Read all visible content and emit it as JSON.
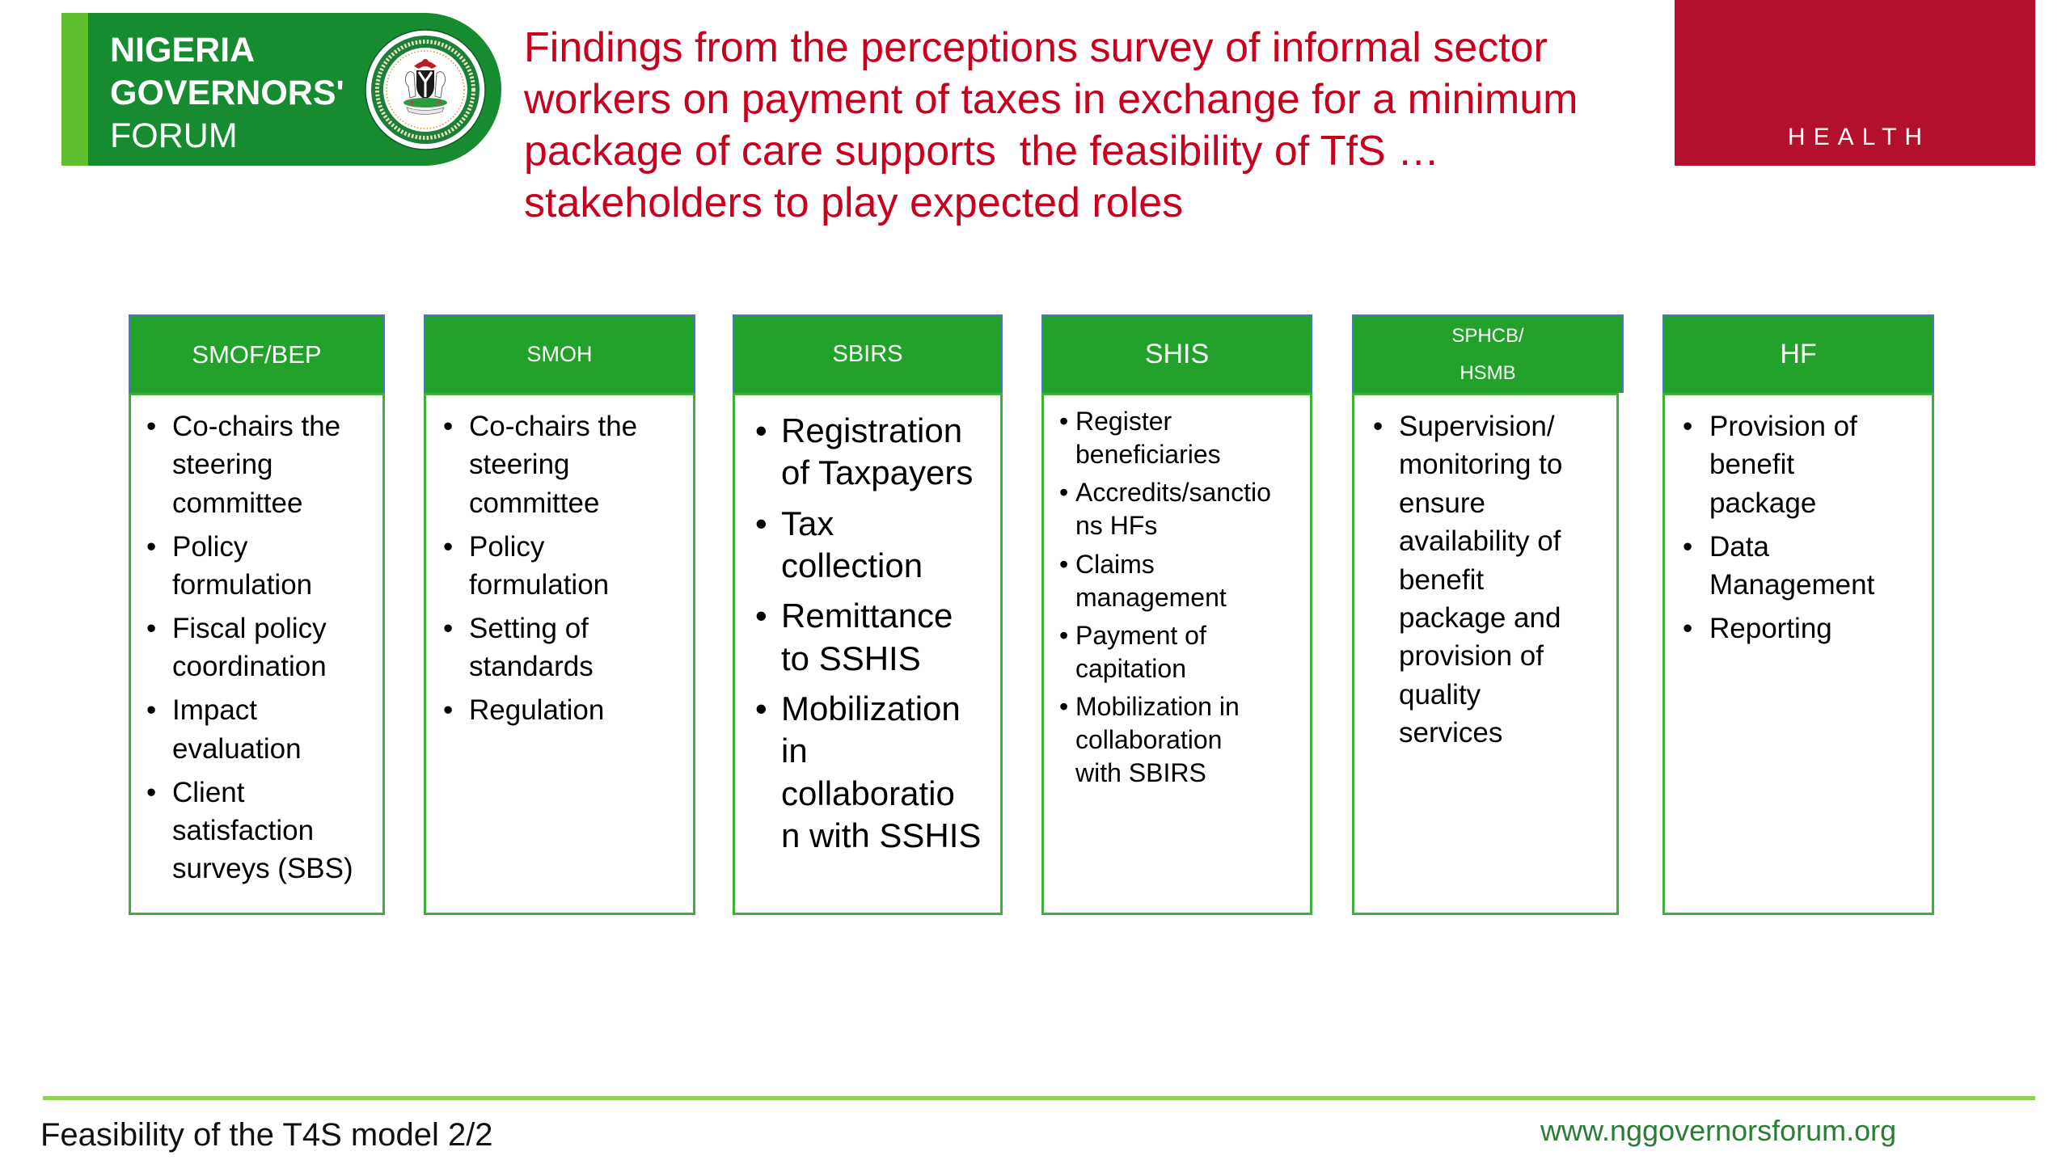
{
  "logo": {
    "line1": "NIGERIA",
    "line2": "GOVERNORS'",
    "line3": "FORUM"
  },
  "title": {
    "lines": [
      "Findings from the perceptions survey of informal sector",
      "workers on payment of taxes in exchange for a minimum",
      "package of care supports  the feasibility of TfS …",
      "stakeholders to play expected roles"
    ]
  },
  "section_tag": "HEALTH",
  "stakeholders": [
    {
      "name": "SMOF/BEP",
      "roles": [
        "Co-chairs the\nsteering\ncommittee",
        "Policy\nformulation",
        "Fiscal policy\ncoordination",
        "Impact\nevaluation",
        "Client\nsatisfaction\nsurveys (SBS)"
      ]
    },
    {
      "name": "SMOH",
      "roles": [
        "Co-chairs the\nsteering\ncommittee",
        "Policy\nformulation",
        "Setting of\nstandards",
        "Regulation"
      ]
    },
    {
      "name": "SBIRS",
      "roles": [
        "Registration\nof Taxpayers",
        "Tax\ncollection",
        "Remittance\nto SSHIS",
        "Mobilization\nin\ncollaboratio\nn with SSHIS"
      ]
    },
    {
      "name": "SHIS",
      "roles": [
        "Register\nbeneficiaries",
        "Accredits/sanctio\nns HFs",
        "Claims\nmanagement",
        "Payment of\ncapitation",
        "Mobilization in\ncollaboration\nwith SBIRS"
      ]
    },
    {
      "name": "SPHCB/\nHSMB",
      "roles": [
        "Supervision/\nmonitoring to\nensure\navailability of\nbenefit\npackage and\nprovision of\nquality\nservices"
      ]
    },
    {
      "name": "HF",
      "roles": [
        "Provision of\nbenefit\npackage",
        "Data\nManagement",
        "Reporting"
      ]
    }
  ],
  "footer": {
    "caption": "Feasibility of the T4S model 2/2",
    "website": "www.nggovernorsforum.org"
  },
  "theme": {
    "title-red": "#c8001e",
    "tag-red": "#b3102d",
    "header-green": "#22a12b",
    "box-green": "#3fae3a",
    "logo-green": "#178b2f",
    "logo-accent": "#5fbf2f",
    "rule-green": "#92d050",
    "link-green": "#2a7d34",
    "header-blue": "#4a78c2"
  }
}
